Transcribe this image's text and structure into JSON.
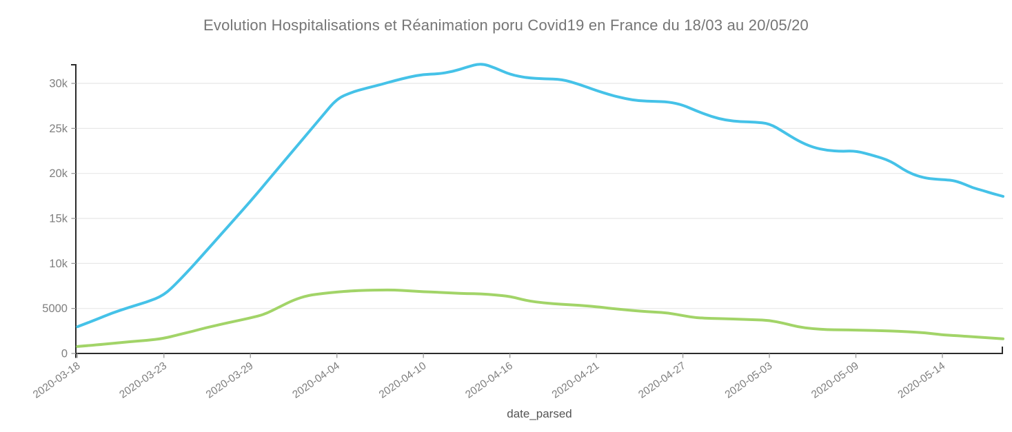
{
  "title": "Evolution Hospitalisations et Réanimation poru Covid19 en France du 18/03 au 20/05/20",
  "colors": {
    "background": "#ffffff",
    "grid": "#e8e8e8",
    "axis": "#2a2a2a",
    "tick": "#999999",
    "tick_label": "#7f7f7f",
    "title_text": "#757575",
    "axis_title_text": "#545454"
  },
  "chart_data": {
    "type": "line",
    "title": "Evolution Hospitalisations et Réanimation poru Covid19 en France du 18/03 au 20/05/20",
    "xlabel": "date_parsed",
    "ylabel": "",
    "legend": "none",
    "grid": "horizontal-only",
    "x_range": [
      "2020-03-18",
      "2020-05-20"
    ],
    "ylim": [
      0,
      32200
    ],
    "x_ticks": [
      "2020-03-18",
      "2020-03-23",
      "2020-03-29",
      "2020-04-04",
      "2020-04-10",
      "2020-04-16",
      "2020-04-21",
      "2020-04-27",
      "2020-05-03",
      "2020-05-09",
      "2020-05-14"
    ],
    "y_ticks": [
      {
        "value": 0,
        "label": "0"
      },
      {
        "value": 5000,
        "label": "5000"
      },
      {
        "value": 10000,
        "label": "10k"
      },
      {
        "value": 15000,
        "label": "15k"
      },
      {
        "value": 20000,
        "label": "20k"
      },
      {
        "value": 25000,
        "label": "25k"
      },
      {
        "value": 30000,
        "label": "30k"
      }
    ],
    "dates": [
      "2020-03-18",
      "2020-03-19",
      "2020-03-20",
      "2020-03-21",
      "2020-03-22",
      "2020-03-23",
      "2020-03-24",
      "2020-03-25",
      "2020-03-26",
      "2020-03-27",
      "2020-03-28",
      "2020-03-29",
      "2020-03-30",
      "2020-03-31",
      "2020-04-01",
      "2020-04-02",
      "2020-04-03",
      "2020-04-04",
      "2020-04-05",
      "2020-04-06",
      "2020-04-07",
      "2020-04-08",
      "2020-04-09",
      "2020-04-10",
      "2020-04-11",
      "2020-04-12",
      "2020-04-13",
      "2020-04-14",
      "2020-04-15",
      "2020-04-16",
      "2020-04-17",
      "2020-04-18",
      "2020-04-19",
      "2020-04-20",
      "2020-04-21",
      "2020-04-22",
      "2020-04-23",
      "2020-04-24",
      "2020-04-25",
      "2020-04-26",
      "2020-04-27",
      "2020-04-28",
      "2020-04-29",
      "2020-04-30",
      "2020-05-01",
      "2020-05-02",
      "2020-05-03",
      "2020-05-04",
      "2020-05-05",
      "2020-05-06",
      "2020-05-07",
      "2020-05-08",
      "2020-05-09",
      "2020-05-10",
      "2020-05-11",
      "2020-05-12",
      "2020-05-13",
      "2020-05-14",
      "2020-05-15",
      "2020-05-16",
      "2020-05-17",
      "2020-05-18",
      "2020-05-19",
      "2020-05-20"
    ],
    "series": [
      {
        "name": "Hospitalisations",
        "color": "#45c2e8",
        "values": [
          2970,
          3700,
          4490,
          5130,
          5700,
          6450,
          8000,
          9700,
          11500,
          13300,
          15100,
          16900,
          18800,
          20700,
          22600,
          24500,
          26400,
          28300,
          29000,
          29450,
          29850,
          30300,
          30700,
          31000,
          31050,
          31300,
          31800,
          32250,
          31700,
          31000,
          30600,
          30500,
          30450,
          29900,
          29200,
          28700,
          28300,
          28050,
          28000,
          27950,
          27600,
          26900,
          26300,
          25900,
          25750,
          25700,
          25550,
          24600,
          23600,
          22900,
          22550,
          22450,
          22500,
          22000,
          21400,
          20100,
          19450,
          19300,
          19250,
          18900,
          18400,
          18100,
          17750,
          17450
        ]
      },
      {
        "name": "Réanimation",
        "color": "#a2d468",
        "values": [
          770,
          930,
          1120,
          1300,
          1450,
          1675,
          2080,
          2460,
          2890,
          3250,
          3600,
          3950,
          4350,
          5150,
          5950,
          6450,
          6660,
          6820,
          6950,
          7020,
          7050,
          7050,
          6950,
          6850,
          6800,
          6720,
          6650,
          6620,
          6500,
          6350,
          5850,
          5600,
          5450,
          5350,
          5200,
          5000,
          4850,
          4700,
          4600,
          4500,
          4200,
          3950,
          3900,
          3850,
          3800,
          3750,
          3670,
          3350,
          2950,
          2750,
          2650,
          2620,
          2600,
          2550,
          2500,
          2420,
          2300,
          2070,
          2000,
          1930,
          1850,
          1780,
          1700,
          1630
        ]
      }
    ]
  }
}
